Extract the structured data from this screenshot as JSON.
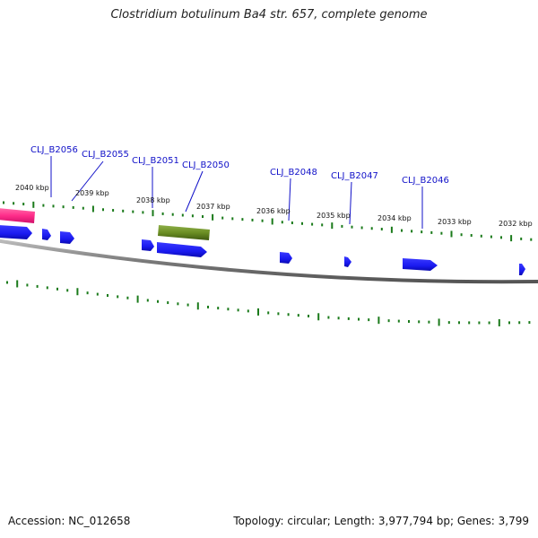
{
  "title": "Clostridium botulinum Ba4 str. 657, complete genome",
  "footer": {
    "accession": "Accession: NC_012658",
    "topology": "Topology: circular; Length: 3,977,794 bp; Genes: 3,799"
  },
  "colors": {
    "gene_cds": "#1a1af0",
    "gene_highlight_green": "#6b8e23",
    "gene_highlight_pink": "#ff2d8a",
    "tick": "#1a7a1a",
    "backbone": "#8a8a8a",
    "gene_label": "#1010c8"
  },
  "kbp_labels": [
    "2040 kbp",
    "2039 kbp",
    "2038 kbp",
    "2037 kbp",
    "2036 kbp",
    "2035 kbp",
    "2034 kbp",
    "2033 kbp",
    "2032 kbp"
  ],
  "gene_labels": [
    "CLJ_B2056",
    "CLJ_B2055",
    "CLJ_B2051",
    "CLJ_B2050",
    "CLJ_B2048",
    "CLJ_B2047",
    "CLJ_B2046"
  ]
}
